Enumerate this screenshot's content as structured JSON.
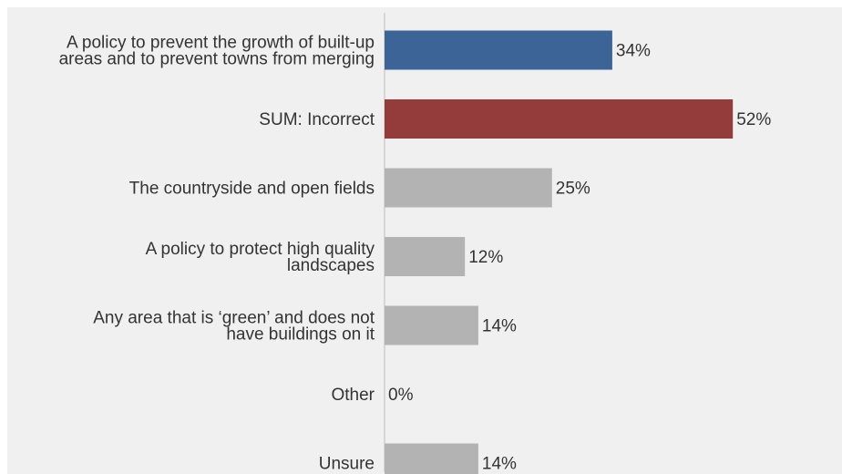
{
  "chart_data": {
    "type": "bar",
    "orientation": "horizontal",
    "categories": [
      [
        "A policy to prevent the growth of built-up",
        "areas and to prevent towns from merging"
      ],
      [
        "SUM: Incorrect"
      ],
      [
        "The countryside and open fields"
      ],
      [
        "A policy to protect high quality",
        "landscapes"
      ],
      [
        "Any area that is ‘green’ and does not",
        "have buildings on it"
      ],
      [
        "Other"
      ],
      [
        "Unsure"
      ]
    ],
    "values": [
      34,
      52,
      25,
      12,
      14,
      0,
      14
    ],
    "value_labels": [
      "34%",
      "52%",
      "25%",
      "12%",
      "14%",
      "0%",
      "14%"
    ],
    "bar_colors": [
      "#3c6496",
      "#943c3c",
      "#b3b3b3",
      "#b3b3b3",
      "#b3b3b3",
      "#b3b3b3",
      "#b3b3b3"
    ],
    "xlim": [
      0,
      100
    ],
    "grid": false,
    "legend": "none"
  }
}
